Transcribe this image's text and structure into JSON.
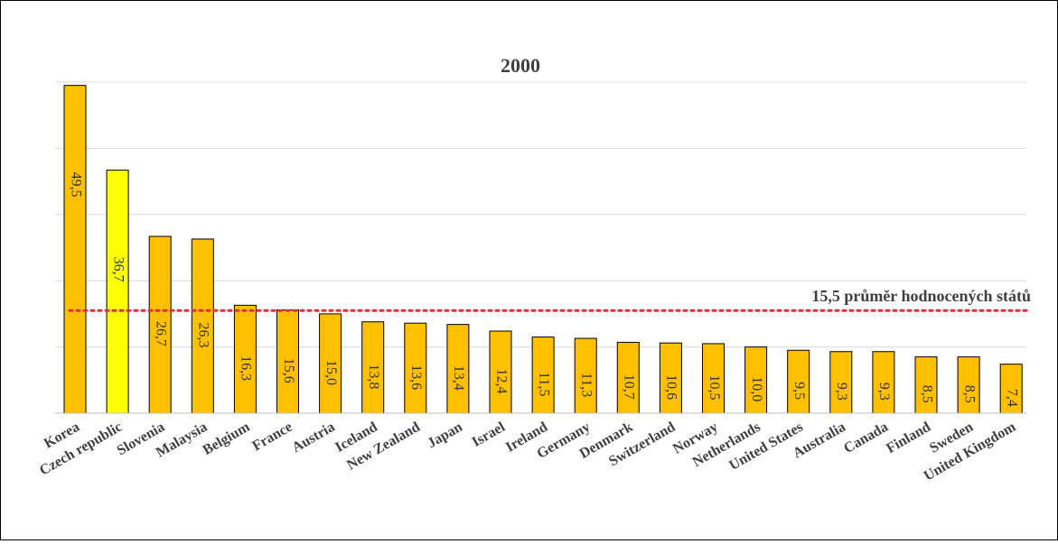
{
  "chart_data": {
    "type": "bar",
    "title": "2000",
    "categories": [
      "Korea",
      "Czech republic",
      "Slovenia",
      "Malaysia",
      "Belgium",
      "France",
      "Austria",
      "Iceland",
      "New Zealand",
      "Japan",
      "Israel",
      "Ireland",
      "Germany",
      "Denmark",
      "Switzerland",
      "Norway",
      "Netherlands",
      "United States",
      "Australia",
      "Canada",
      "Finland",
      "Sweden",
      "United Kingdom"
    ],
    "values": [
      49.5,
      36.7,
      26.7,
      26.3,
      16.3,
      15.6,
      15.0,
      13.8,
      13.6,
      13.4,
      12.4,
      11.5,
      11.3,
      10.7,
      10.6,
      10.5,
      10.0,
      9.5,
      9.3,
      9.3,
      8.5,
      8.5,
      7.4
    ],
    "value_labels": [
      "49,5",
      "36,7",
      "26,7",
      "26,3",
      "16,3",
      "15,6",
      "15,0",
      "13,8",
      "13,6",
      "13,4",
      "12,4",
      "11,5",
      "11,3",
      "10,7",
      "10,6",
      "10,5",
      "10,0",
      "9,5",
      "9,3",
      "9,3",
      "8,5",
      "8,5",
      "7,4"
    ],
    "highlight_category": "Czech republic",
    "ylim": [
      0,
      50
    ],
    "grid": true,
    "xlabel": "",
    "ylabel": "",
    "reference_line": {
      "value": 15.5,
      "label": "15,5 průměr hodnocených států",
      "style": "dotted",
      "color": "#d9343a"
    },
    "colors": {
      "bar": "#ffc000",
      "bar_highlight": "#ffff00",
      "bar_stroke": "#000000",
      "grid": "#d9d9d9",
      "text": "#404040"
    }
  }
}
